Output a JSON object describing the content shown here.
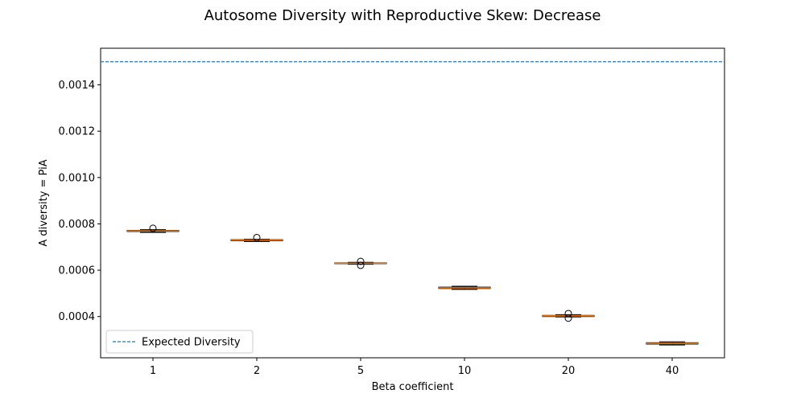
{
  "chart_data": {
    "type": "box",
    "title": "Autosome Diversity with Reproductive Skew: Decrease",
    "xlabel": "Beta coefficient",
    "ylabel": "A diversity = PiA",
    "categories": [
      "1",
      "2",
      "5",
      "10",
      "20",
      "40"
    ],
    "ylim": [
      0.000222,
      0.001558
    ],
    "yticks": [
      0.0004,
      0.0006,
      0.0008,
      0.001,
      0.0012,
      0.0014
    ],
    "ytick_labels": [
      "0.0004",
      "0.0006",
      "0.0008",
      "0.0010",
      "0.0012",
      "0.0014"
    ],
    "boxes": [
      {
        "category": "1",
        "whisker_low": 0.000763,
        "q1": 0.000767,
        "median": 0.00077,
        "q3": 0.000772,
        "whisker_high": 0.000775,
        "outliers": [
          0.000781
        ]
      },
      {
        "category": "2",
        "whisker_low": 0.000724,
        "q1": 0.000727,
        "median": 0.00073,
        "q3": 0.000732,
        "whisker_high": 0.000734,
        "outliers": [
          0.000741
        ]
      },
      {
        "category": "5",
        "whisker_low": 0.000626,
        "q1": 0.000628,
        "median": 0.00063,
        "q3": 0.000632,
        "whisker_high": 0.000634,
        "outliers": [
          0.000621,
          0.000638
        ]
      },
      {
        "category": "10",
        "whisker_low": 0.000517,
        "q1": 0.000521,
        "median": 0.000524,
        "q3": 0.000527,
        "whisker_high": 0.000531,
        "outliers": []
      },
      {
        "category": "20",
        "whisker_low": 0.000398,
        "q1": 0.0004,
        "median": 0.000403,
        "q3": 0.000405,
        "whisker_high": 0.000408,
        "outliers": [
          0.000393,
          0.000413
        ]
      },
      {
        "category": "40",
        "whisker_low": 0.000277,
        "q1": 0.000281,
        "median": 0.000284,
        "q3": 0.000287,
        "whisker_high": 0.000291,
        "outliers": []
      }
    ],
    "reference_line": {
      "name": "Expected Diversity",
      "value": 0.0015,
      "style": "dashed",
      "color": "#1f77b4"
    },
    "legend": {
      "entries": [
        "Expected Diversity"
      ],
      "placement": "lower-left"
    },
    "grid": false,
    "colors": {
      "box": "#000000",
      "median": "#ff7f0e",
      "reference": "#1f77b4"
    }
  }
}
